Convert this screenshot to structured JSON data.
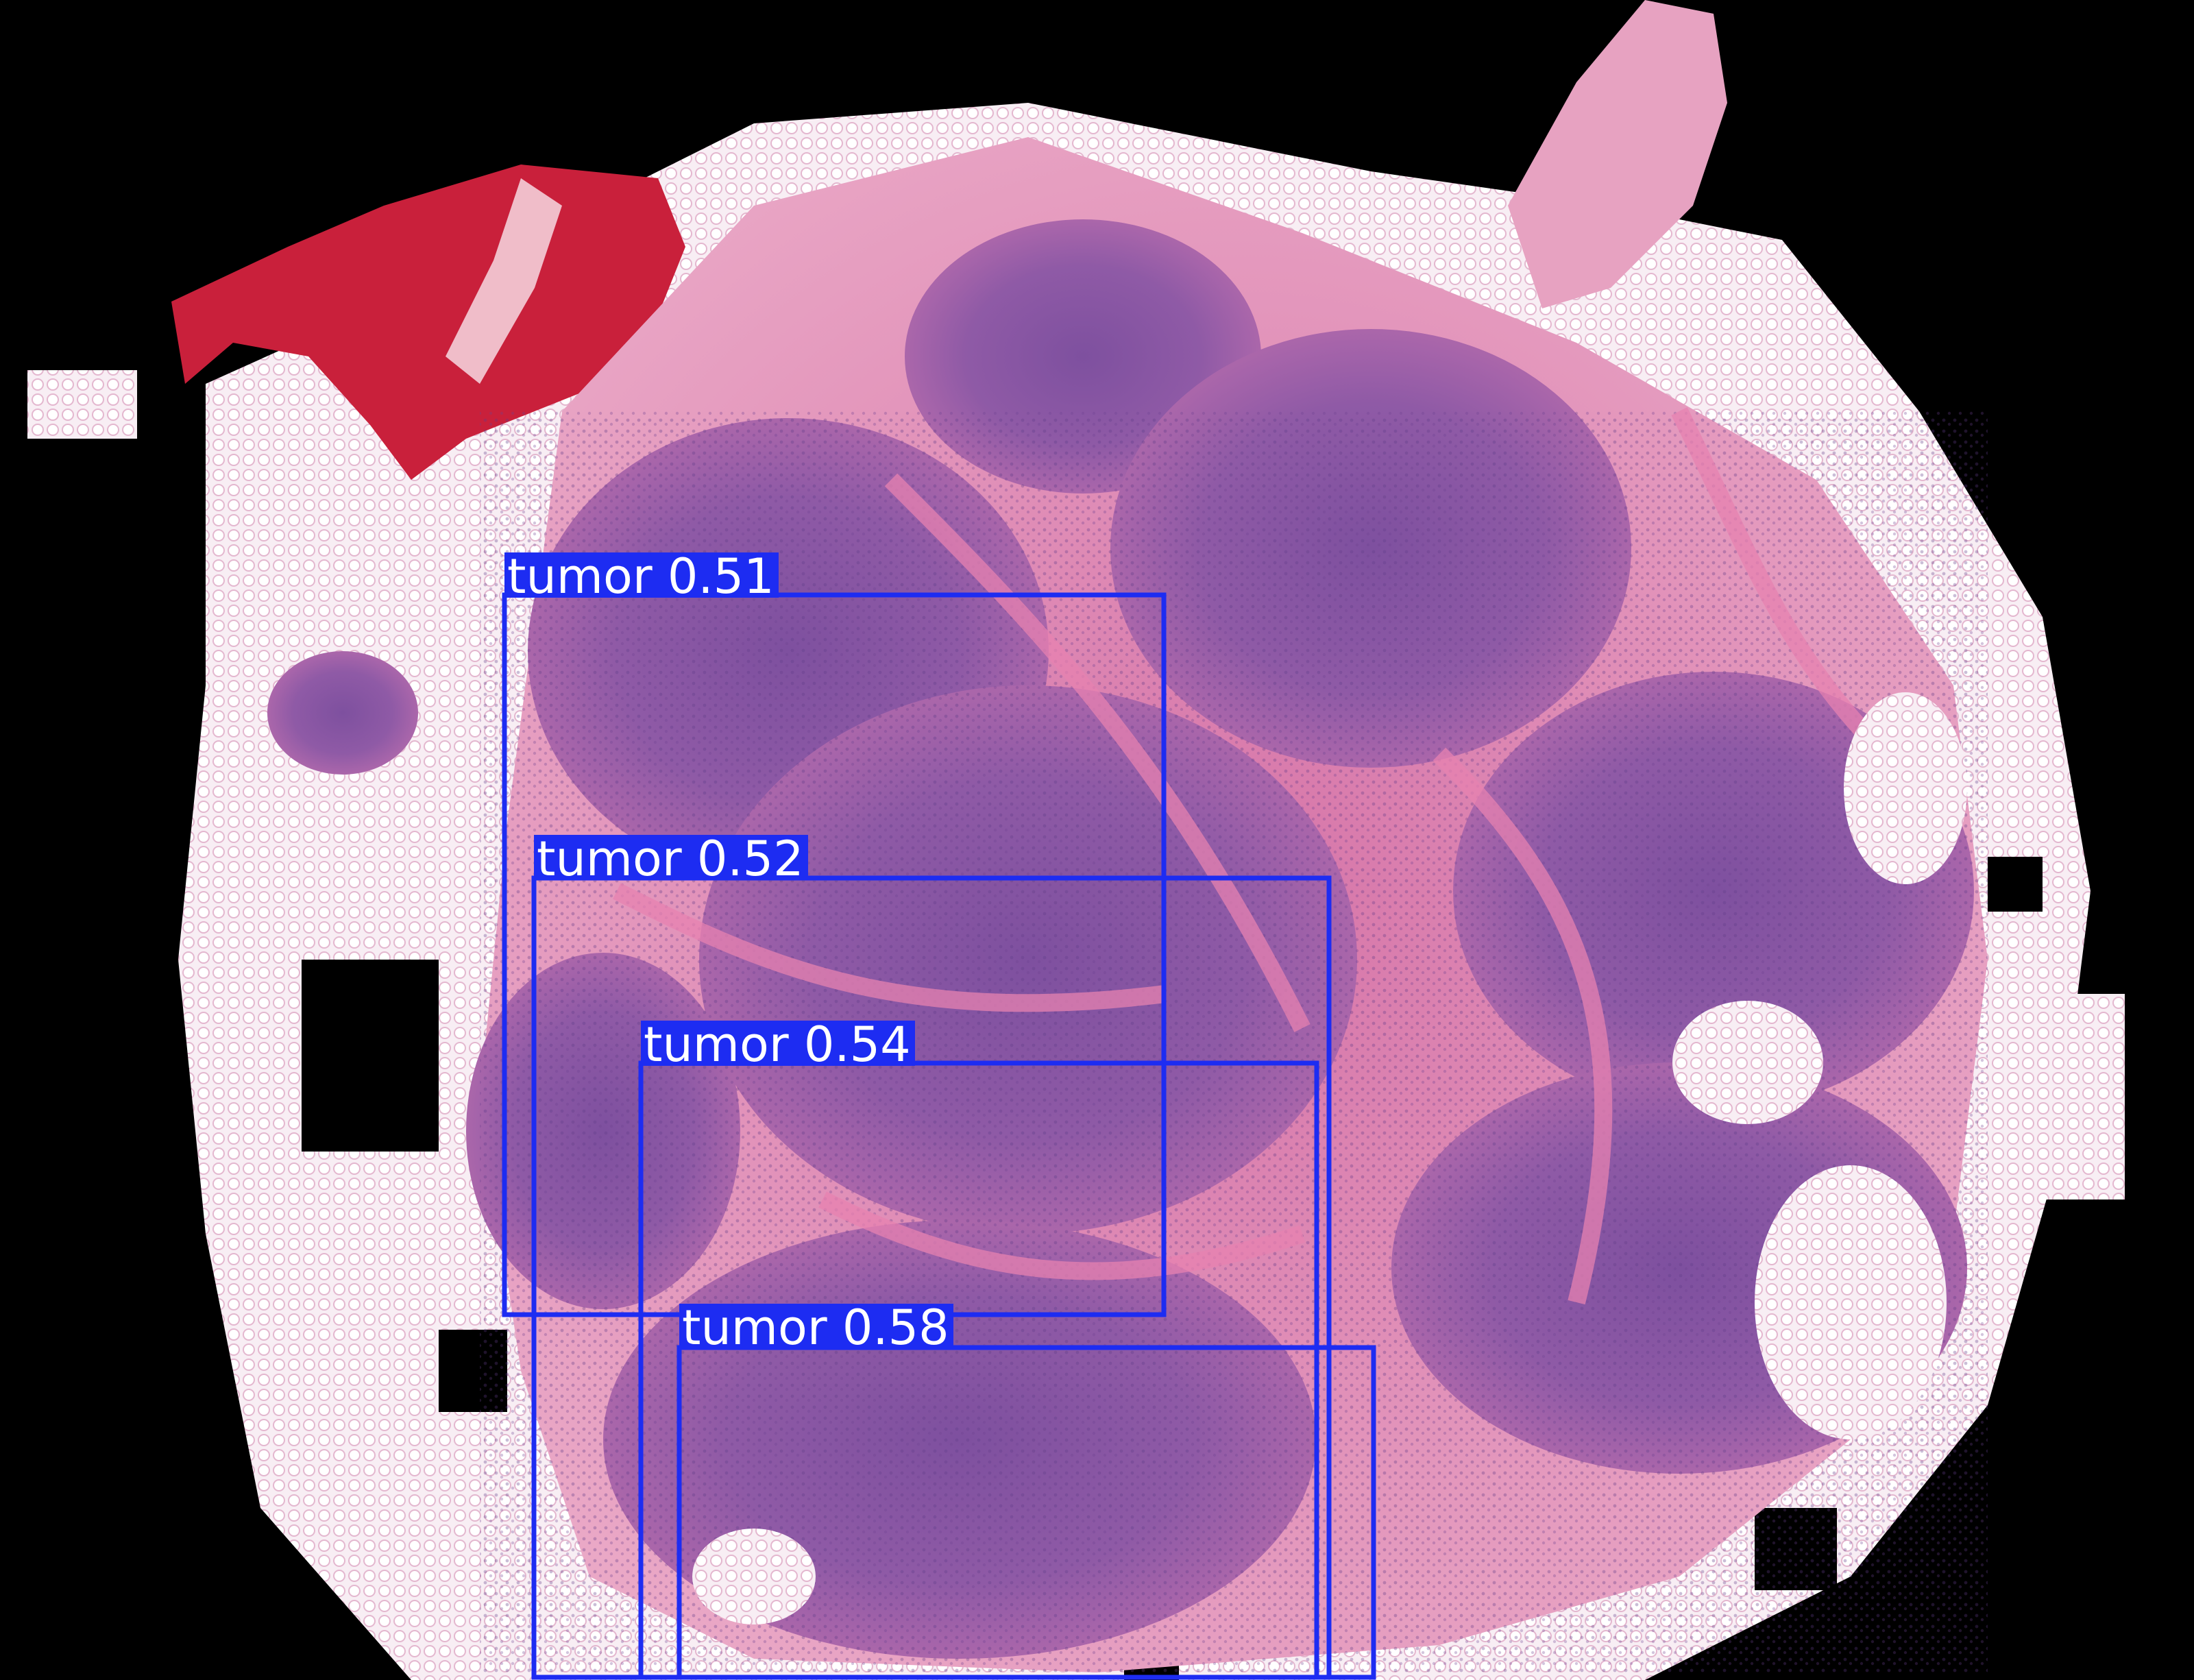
{
  "image": {
    "subject": "H&E stained whole slide tissue section with tumor detections",
    "background_color": "#000000",
    "tissue_colors": [
      "#9b5fa6",
      "#7d4f9e",
      "#e07aa6",
      "#f6eef4",
      "#c8203a"
    ],
    "box_color": "#1d2cf2"
  },
  "detections": [
    {
      "label": "tumor 0.51",
      "class": "tumor",
      "score": 0.51
    },
    {
      "label": "tumor 0.52",
      "class": "tumor",
      "score": 0.52
    },
    {
      "label": "tumor 0.54",
      "class": "tumor",
      "score": 0.54
    },
    {
      "label": "tumor 0.58",
      "class": "tumor",
      "score": 0.58
    }
  ]
}
